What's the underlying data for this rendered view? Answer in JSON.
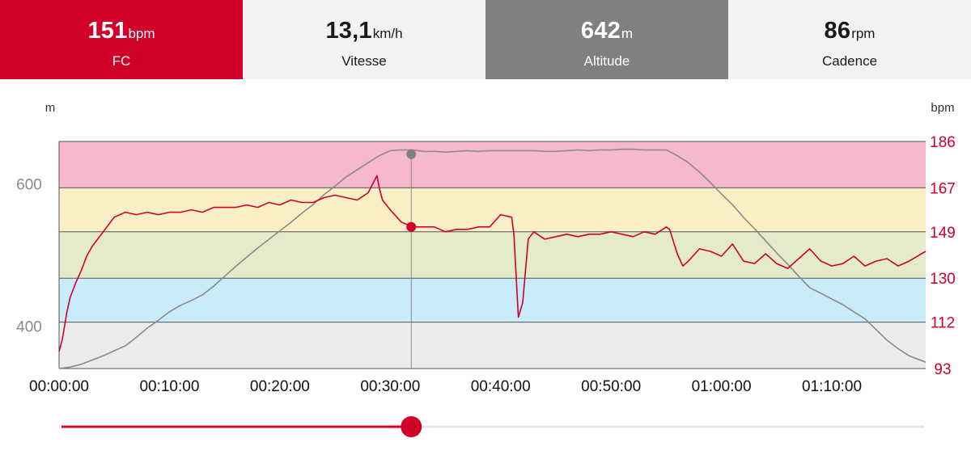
{
  "tiles": [
    {
      "value": "151",
      "unit": "bpm",
      "label": "FC",
      "bg": "#d0002a",
      "fg": "#ffffff"
    },
    {
      "value": "13,1",
      "unit": "km/h",
      "label": "Vitesse",
      "bg": "#f2f2f2",
      "fg": "#1a1a1a"
    },
    {
      "value": "642",
      "unit": "m",
      "label": "Altitude",
      "bg": "#808080",
      "fg": "#ffffff"
    },
    {
      "value": "86",
      "unit": "rpm",
      "label": "Cadence",
      "bg": "#f2f2f2",
      "fg": "#1a1a1a"
    }
  ],
  "colors": {
    "hr_line": "#d0002a",
    "altitude_line": "#8a8a8a",
    "zones": [
      "#ececec",
      "#c8ecf9",
      "#e4ebcb",
      "#fbefc6",
      "#f5b8cf"
    ],
    "slider_active": "#d0002a",
    "slider_track": "#e8e8e8"
  },
  "chart_data": {
    "type": "line",
    "x_unit": "time",
    "x_range": [
      "00:00:00",
      "01:18:30"
    ],
    "x_ticks": [
      "00:00:00",
      "00:10:00",
      "00:20:00",
      "00:30:00",
      "00:40:00",
      "00:50:00",
      "01:00:00",
      "01:10:00"
    ],
    "y_left": {
      "unit": "m",
      "range": [
        340,
        660
      ],
      "ticks": [
        "400",
        "600"
      ]
    },
    "y_right": {
      "unit": "bpm",
      "range": [
        93,
        186
      ],
      "ticks": [
        "93",
        "112",
        "130",
        "149",
        "167",
        "186"
      ]
    },
    "hr_zones_bpm": [
      [
        93,
        112
      ],
      [
        112,
        130
      ],
      [
        130,
        149
      ],
      [
        149,
        167
      ],
      [
        167,
        186
      ]
    ],
    "cursor_time_min": 31.9,
    "cursor_hr_bpm": 151,
    "cursor_altitude_m": 642,
    "series": [
      {
        "axis": "right",
        "x_min": [
          0,
          0.3,
          0.7,
          1,
          1.5,
          2,
          2.5,
          3,
          4,
          5,
          6,
          7,
          8,
          9,
          10,
          11,
          12,
          13,
          14,
          15,
          16,
          17,
          18,
          19,
          20,
          21,
          22,
          23,
          24,
          25,
          26,
          27,
          28,
          28.8,
          29,
          29.3,
          30,
          31,
          32,
          33,
          34,
          35,
          36,
          37,
          38,
          39,
          40,
          41,
          41.2,
          41.6,
          42,
          42.5,
          43,
          44,
          45,
          46,
          47,
          48,
          49,
          50,
          51,
          52,
          53,
          54,
          55,
          55.3,
          56,
          56.5,
          57,
          58,
          59,
          60,
          61,
          62,
          63,
          64,
          65,
          66,
          67,
          68,
          69,
          70,
          71,
          72,
          73,
          74,
          75,
          76,
          77,
          78.5
        ],
        "values": [
          100,
          105,
          116,
          122,
          128,
          133,
          139,
          143,
          149,
          155,
          157,
          156,
          157,
          156,
          157,
          157,
          158,
          157,
          159,
          159,
          159,
          160,
          159,
          161,
          160,
          162,
          161,
          161,
          163,
          164,
          163,
          162,
          165,
          172,
          167,
          162,
          158,
          153,
          151,
          151,
          151,
          149,
          150,
          150,
          151,
          151,
          156,
          155,
          148,
          114,
          120,
          146,
          149,
          146,
          147,
          148,
          147,
          148,
          148,
          149,
          148,
          147,
          149,
          148,
          151,
          150,
          140,
          135,
          137,
          142,
          141,
          139,
          144,
          137,
          136,
          140,
          136,
          134,
          138,
          142,
          137,
          135,
          136,
          139,
          135,
          137,
          138,
          135,
          137,
          141,
          138
        ]
      },
      {
        "axis": "left",
        "x_min": [
          0,
          1,
          2,
          3,
          4,
          5,
          6,
          7,
          8,
          9,
          10,
          11,
          12,
          13,
          14,
          15,
          16,
          17,
          18,
          19,
          20,
          21,
          22,
          23,
          24,
          25,
          26,
          27,
          28,
          29,
          30,
          31,
          32,
          33,
          34,
          35,
          36,
          37,
          38,
          39,
          40,
          41,
          42,
          43,
          44,
          45,
          46,
          47,
          48,
          49,
          50,
          51,
          52,
          53,
          54,
          55,
          56,
          57,
          58,
          59,
          60,
          61,
          62,
          63,
          64,
          65,
          66,
          67,
          68,
          69,
          70,
          71,
          72,
          73,
          74,
          75,
          76,
          77,
          78.5
        ],
        "values": [
          340,
          342,
          346,
          352,
          358,
          365,
          372,
          384,
          397,
          408,
          420,
          429,
          436,
          444,
          456,
          470,
          484,
          497,
          510,
          522,
          534,
          546,
          559,
          571,
          585,
          597,
          610,
          620,
          630,
          640,
          647,
          648,
          648,
          646,
          646,
          645,
          646,
          647,
          646,
          647,
          647,
          647,
          647,
          647,
          646,
          646,
          647,
          648,
          647,
          648,
          648,
          649,
          649,
          648,
          648,
          648,
          640,
          630,
          617,
          602,
          586,
          571,
          553,
          537,
          520,
          503,
          487,
          470,
          454,
          446,
          438,
          430,
          420,
          410,
          395,
          380,
          368,
          358,
          349
        ]
      }
    ]
  }
}
